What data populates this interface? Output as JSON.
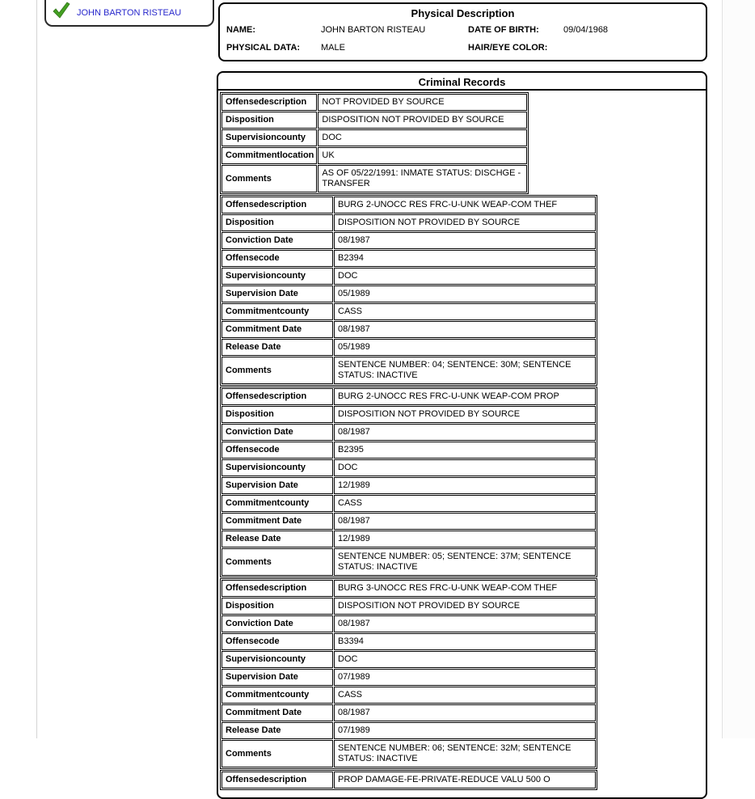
{
  "sidebar": {
    "person_link": "JOHN BARTON RISTEAU",
    "check_icon": "green-checkmark"
  },
  "physical_description": {
    "title": "Physical Description",
    "fields": [
      {
        "label": "NAME:",
        "value": "JOHN BARTON RISTEAU"
      },
      {
        "label": "DATE OF BIRTH:",
        "value": "09/04/1968"
      },
      {
        "label": "PHYSICAL DATA:",
        "value": "MALE"
      },
      {
        "label": "HAIR/EYE COLOR:",
        "value": ""
      }
    ]
  },
  "criminal_records": {
    "title": "Criminal Records",
    "records": [
      {
        "width": "narrow",
        "rows": [
          [
            "Offensedescription",
            "NOT PROVIDED BY SOURCE"
          ],
          [
            "Disposition",
            "DISPOSITION NOT PROVIDED BY SOURCE"
          ],
          [
            "Supervisioncounty",
            "DOC"
          ],
          [
            "Commitmentlocation",
            "UK"
          ],
          [
            "Comments",
            "AS OF 05/22/1991: INMATE STATUS: DISCHGE - TRANSFER"
          ]
        ]
      },
      {
        "width": "wide",
        "rows": [
          [
            "Offensedescription",
            "BURG 2-UNOCC RES FRC-U-UNK WEAP-COM THEF"
          ],
          [
            "Disposition",
            "DISPOSITION NOT PROVIDED BY SOURCE"
          ],
          [
            "Conviction Date",
            "08/1987"
          ],
          [
            "Offensecode",
            "B2394"
          ],
          [
            "Supervisioncounty",
            "DOC"
          ],
          [
            "Supervision Date",
            "05/1989"
          ],
          [
            "Commitmentcounty",
            "CASS"
          ],
          [
            "Commitment Date",
            "08/1987"
          ],
          [
            "Release Date",
            "05/1989"
          ],
          [
            "Comments",
            "SENTENCE NUMBER: 04; SENTENCE: 30M; SENTENCE STATUS: INACTIVE"
          ]
        ]
      },
      {
        "width": "wide",
        "rows": [
          [
            "Offensedescription",
            "BURG 2-UNOCC RES FRC-U-UNK WEAP-COM PROP"
          ],
          [
            "Disposition",
            "DISPOSITION NOT PROVIDED BY SOURCE"
          ],
          [
            "Conviction Date",
            "08/1987"
          ],
          [
            "Offensecode",
            "B2395"
          ],
          [
            "Supervisioncounty",
            "DOC"
          ],
          [
            "Supervision Date",
            "12/1989"
          ],
          [
            "Commitmentcounty",
            "CASS"
          ],
          [
            "Commitment Date",
            "08/1987"
          ],
          [
            "Release Date",
            "12/1989"
          ],
          [
            "Comments",
            "SENTENCE NUMBER: 05; SENTENCE: 37M; SENTENCE STATUS: INACTIVE"
          ]
        ]
      },
      {
        "width": "wide",
        "rows": [
          [
            "Offensedescription",
            "BURG 3-UNOCC RES FRC-U-UNK WEAP-COM THEF"
          ],
          [
            "Disposition",
            "DISPOSITION NOT PROVIDED BY SOURCE"
          ],
          [
            "Conviction Date",
            "08/1987"
          ],
          [
            "Offensecode",
            "B3394"
          ],
          [
            "Supervisioncounty",
            "DOC"
          ],
          [
            "Supervision Date",
            "07/1989"
          ],
          [
            "Commitmentcounty",
            "CASS"
          ],
          [
            "Commitment Date",
            "08/1987"
          ],
          [
            "Release Date",
            "07/1989"
          ],
          [
            "Comments",
            "SENTENCE NUMBER: 06; SENTENCE: 32M; SENTENCE STATUS: INACTIVE"
          ]
        ]
      },
      {
        "width": "wide",
        "rows": [
          [
            "Offensedescription",
            "PROP DAMAGE-FE-PRIVATE-REDUCE VALU 500 O"
          ]
        ]
      }
    ]
  },
  "colors": {
    "link_blue": "#2828cc",
    "check_green": "#44a022",
    "border_black": "#000000",
    "divider_gray": "#d4d4d4"
  }
}
